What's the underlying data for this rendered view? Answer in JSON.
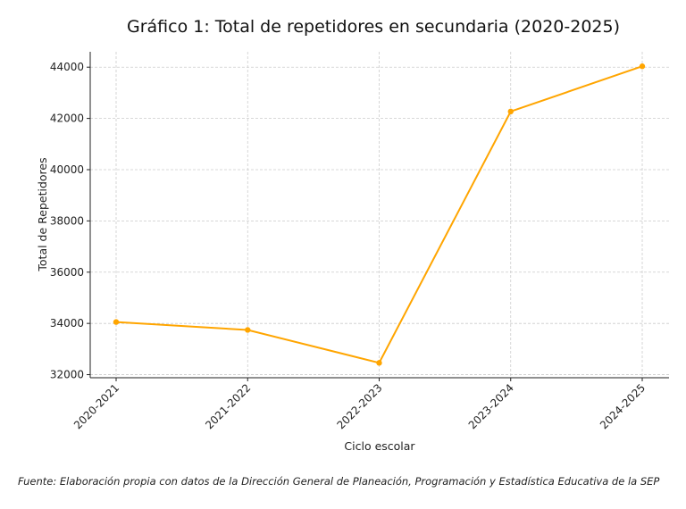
{
  "chart_data": {
    "type": "line",
    "title": "Gráfico 1: Total de repetidores en secundaria (2020-2025)",
    "xlabel": "Ciclo escolar",
    "ylabel": "Total de Repetidores",
    "categories": [
      "2020-2021",
      "2021-2022",
      "2022-2023",
      "2023-2024",
      "2024-2025"
    ],
    "series": [
      {
        "name": "Total de repetidores",
        "values": [
          34055,
          33745,
          32460,
          42270,
          44035
        ],
        "color": "#FFA500"
      }
    ],
    "yticks": [
      32000,
      34000,
      36000,
      38000,
      40000,
      42000,
      44000
    ],
    "ylim": [
      31880,
      44600
    ],
    "grid": true
  },
  "footnote": "Fuente: Elaboración propia con datos de la Dirección General de Planeación, Programación y Estadística Educativa de la SEP"
}
